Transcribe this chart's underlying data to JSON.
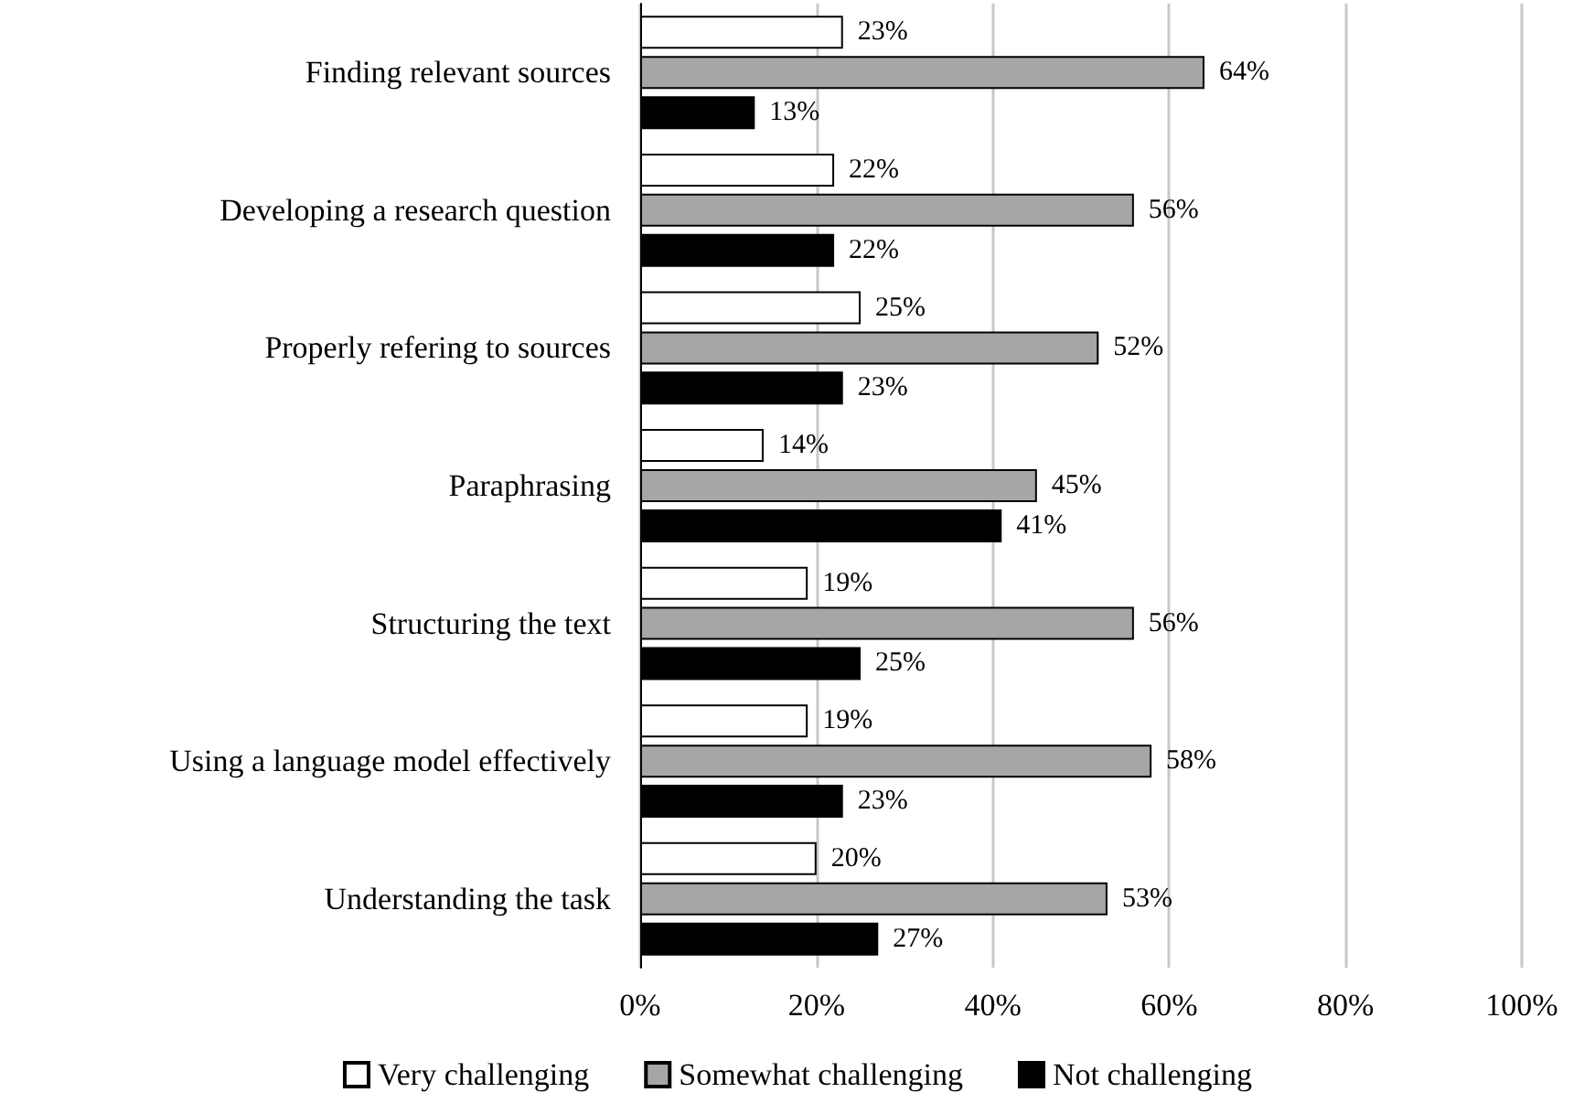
{
  "chart_data": {
    "type": "bar",
    "orientation": "horizontal",
    "categories": [
      "Finding relevant sources",
      "Developing a research question",
      "Properly refering to sources",
      "Paraphrasing",
      "Structuring the text",
      "Using a language model effectively",
      "Understanding the task"
    ],
    "series": [
      {
        "name": "Very challenging",
        "color": "#ffffff",
        "values": [
          23,
          22,
          25,
          14,
          19,
          19,
          20
        ],
        "value_labels": [
          "23%",
          "22%",
          "25%",
          "14%",
          "19%",
          "19%",
          "20%"
        ]
      },
      {
        "name": "Somewhat challenging",
        "color": "#a6a6a6",
        "values": [
          64,
          56,
          52,
          45,
          56,
          58,
          53
        ],
        "value_labels": [
          "64%",
          "56%",
          "52%",
          "45%",
          "56%",
          "58%",
          "53%"
        ]
      },
      {
        "name": "Not challenging",
        "color": "#000000",
        "values": [
          13,
          22,
          23,
          41,
          25,
          23,
          27
        ],
        "value_labels": [
          "13%",
          "22%",
          "23%",
          "41%",
          "25%",
          "23%",
          "27%"
        ]
      }
    ],
    "xlim": [
      0,
      100
    ],
    "xticks": [
      {
        "value": 0,
        "label": "0%"
      },
      {
        "value": 20,
        "label": "20%"
      },
      {
        "value": 40,
        "label": "40%"
      },
      {
        "value": 60,
        "label": "60%"
      },
      {
        "value": 80,
        "label": "80%"
      },
      {
        "value": 100,
        "label": "100%"
      }
    ],
    "grid": "x",
    "legend": "bottom"
  }
}
